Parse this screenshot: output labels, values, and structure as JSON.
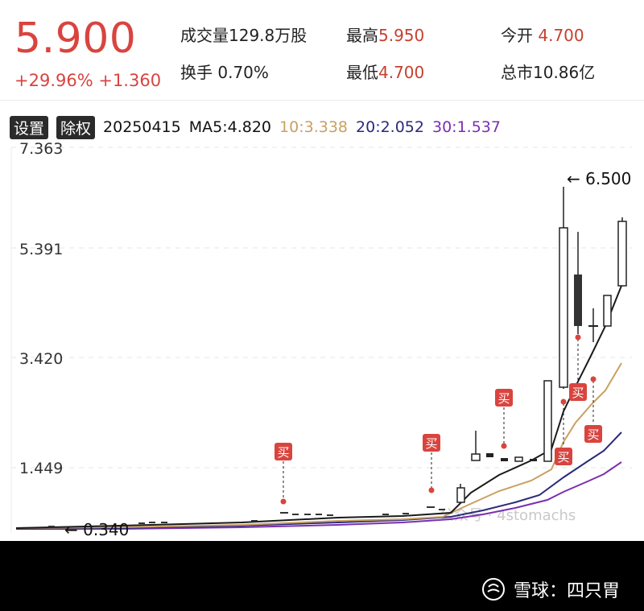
{
  "quote": {
    "price": "5.900",
    "change": "+29.96% +1.360",
    "volume_label": "成交量",
    "volume_value": "129.8万股",
    "high_label": "最高",
    "high_value": "5.950",
    "open_label": "今开",
    "open_value": "4.700",
    "turnover_label": "换手",
    "turnover_value": "0.70%",
    "low_label": "最低",
    "low_value": "4.700",
    "mktcap_label": "总市",
    "mktcap_value": "10.86亿"
  },
  "toolbar": {
    "settings_label": "设置",
    "adjust_label": "除权",
    "date": "20250415",
    "ma5": "MA5:4.820",
    "ma10": "10:3.338",
    "ma20": "20:2.052",
    "ma30": "30:1.537"
  },
  "colors": {
    "up": "#d9443f",
    "ma5": "#1a1a1a",
    "ma10": "#c9a062",
    "ma20": "#2a2a7a",
    "ma30": "#7a2fb0",
    "buy_marker": "#d9443f"
  },
  "chart_data": {
    "type": "candlestick",
    "y_ticks": [
      "7.363",
      "5.391",
      "3.420",
      "1.449"
    ],
    "ylim": [
      0.34,
      7.363
    ],
    "annotations": {
      "max_label": "← 6.500",
      "min_label": "← 0.340"
    },
    "buy_label": "买",
    "watermark": "公众号 · 4stomachs"
  },
  "footer": {
    "brand": "雪球",
    "separator": "：",
    "author": "四只胃"
  }
}
